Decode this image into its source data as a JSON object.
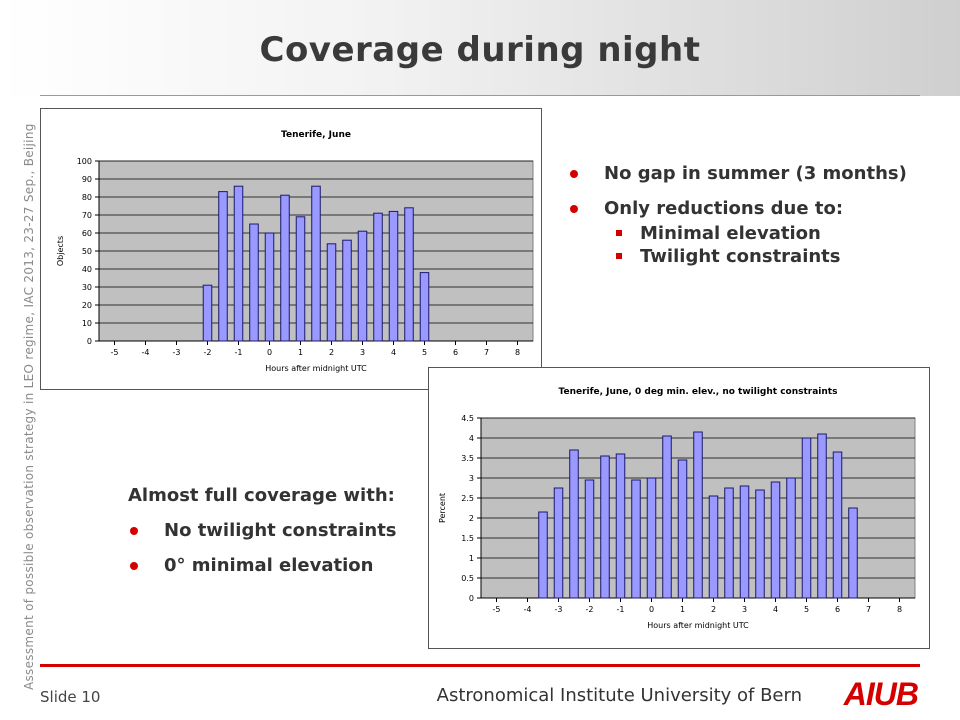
{
  "slide": {
    "title": "Coverage during night",
    "side_text": "Assessment of possible observation strategy in LEO regime, IAC 2013, 23-27 Sep., Beijing",
    "slide_number": "Slide 10",
    "institute": "Astronomical Institute University of Bern",
    "logo_text": "AIUB",
    "accent_color": "#d40000"
  },
  "bullets_top": {
    "items": [
      {
        "label": "No gap in summer (3 months)"
      },
      {
        "label": "Only reductions due to:"
      }
    ],
    "sub_items": [
      {
        "label": "Minimal elevation"
      },
      {
        "label": "Twilight constraints"
      }
    ]
  },
  "bullets_bottom": {
    "heading": "Almost full coverage with:",
    "items": [
      {
        "label": "No twilight constraints"
      },
      {
        "label": "0° minimal elevation"
      }
    ]
  },
  "chart_data": [
    {
      "type": "bar",
      "title": "Tenerife, June",
      "xlabel": "Hours after midnight UTC",
      "ylabel": "Objects",
      "xlim": [
        -5.5,
        8.5
      ],
      "ylim": [
        0,
        100
      ],
      "yticks": [
        0,
        10,
        20,
        30,
        40,
        50,
        60,
        70,
        80,
        90,
        100
      ],
      "xticks": [
        -5,
        -4,
        -3,
        -2,
        -1,
        0,
        1,
        2,
        3,
        4,
        5,
        6,
        7,
        8
      ],
      "grid": true,
      "bar_color": "#9999ff",
      "plot_bg": "#c0c0c0",
      "x": [
        -2.0,
        -1.5,
        -1.0,
        -0.5,
        0.0,
        0.5,
        1.0,
        1.5,
        2.0,
        2.5,
        3.0,
        3.5,
        4.0,
        4.5,
        5.0
      ],
      "values": [
        31,
        83,
        86,
        65,
        60,
        81,
        69,
        86,
        54,
        56,
        61,
        71,
        72,
        74,
        38
      ]
    },
    {
      "type": "bar",
      "title": "Tenerife, June, 0 deg min. elev., no twilight constraints",
      "xlabel": "Hours after midnight UTC",
      "ylabel": "Percent",
      "xlim": [
        -5.5,
        8.5
      ],
      "ylim": [
        0,
        4.5
      ],
      "yticks": [
        0,
        0.5,
        1,
        1.5,
        2,
        2.5,
        3,
        3.5,
        4,
        4.5
      ],
      "xticks": [
        -5,
        -4,
        -3,
        -2,
        -1,
        0,
        1,
        2,
        3,
        4,
        5,
        6,
        7,
        8
      ],
      "grid": true,
      "bar_color": "#9999ff",
      "plot_bg": "#c0c0c0",
      "x": [
        -3.5,
        -3.0,
        -2.5,
        -2.0,
        -1.5,
        -1.0,
        -0.5,
        0.0,
        0.5,
        1.0,
        1.5,
        2.0,
        2.5,
        3.0,
        3.5,
        4.0,
        4.5,
        5.0,
        5.5,
        6.0,
        6.5
      ],
      "values": [
        2.15,
        2.75,
        3.7,
        2.95,
        3.55,
        3.6,
        2.95,
        3.0,
        4.05,
        3.45,
        4.15,
        2.55,
        2.75,
        2.8,
        2.7,
        2.9,
        3.0,
        4.0,
        4.1,
        3.65,
        2.25
      ]
    }
  ]
}
